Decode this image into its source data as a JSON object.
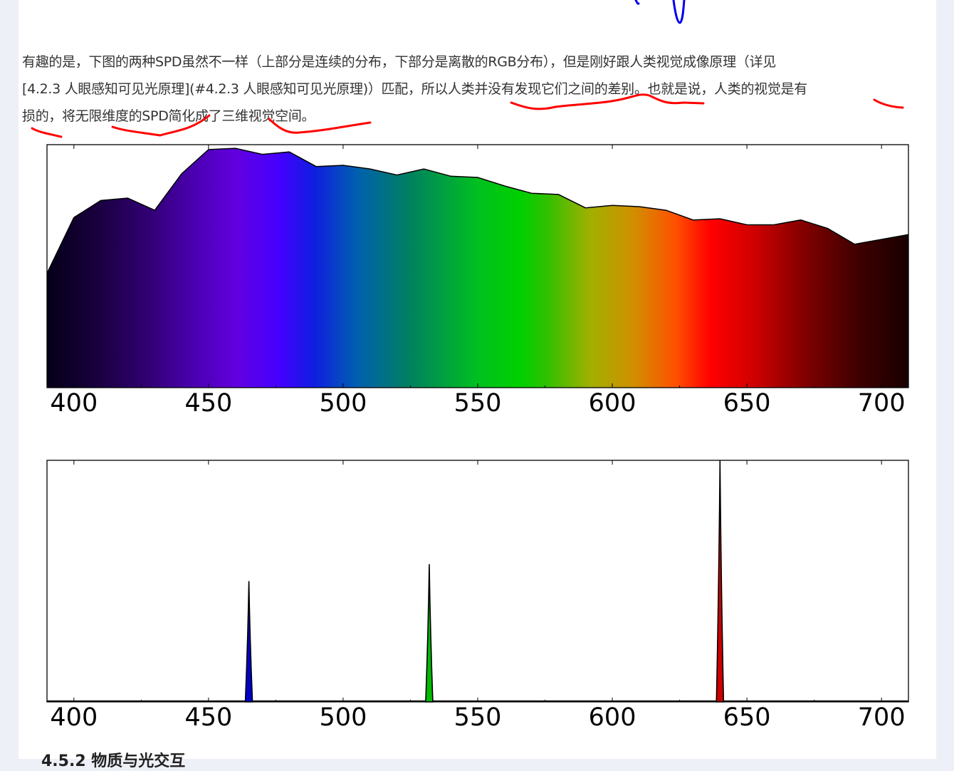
{
  "paragraph": {
    "line1": "有趣的是，下图的两种SPD虽然不一样（上部分是连续的分布，下部分是离散的RGB分布），但是刚好跟人类视觉成像原理（详见",
    "line2": "[4.2.3 人眼感知可见光原理](#4.2.3 人眼感知可见光原理)）匹配，所以人类并没有发现它们之间的差别。也就是说，人类的视觉是有",
    "line3": "损的，将无限维度的SPD简化成了三维视觉空间。"
  },
  "next_heading": "4.5.2 物质与光交互",
  "annotation_color": "#ff0000",
  "chart_data": [
    {
      "type": "area",
      "title": "",
      "xlabel": "",
      "ylabel": "",
      "xlim": [
        390,
        710
      ],
      "ylim": [
        0,
        1
      ],
      "x_ticks": [
        "400",
        "450",
        "500",
        "550",
        "600",
        "650",
        "700"
      ],
      "fill": "visible-spectrum-gradient",
      "x": [
        390,
        400,
        410,
        420,
        430,
        440,
        450,
        460,
        470,
        480,
        490,
        500,
        510,
        520,
        530,
        540,
        550,
        560,
        570,
        580,
        590,
        600,
        610,
        620,
        630,
        640,
        650,
        660,
        670,
        680,
        690,
        700,
        710
      ],
      "y": [
        0.47,
        0.7,
        0.77,
        0.78,
        0.73,
        0.88,
        0.98,
        0.985,
        0.96,
        0.97,
        0.91,
        0.915,
        0.9,
        0.875,
        0.9,
        0.87,
        0.865,
        0.83,
        0.8,
        0.795,
        0.74,
        0.75,
        0.745,
        0.73,
        0.69,
        0.695,
        0.67,
        0.67,
        0.69,
        0.655,
        0.59,
        0.61,
        0.63
      ]
    },
    {
      "type": "line",
      "title": "",
      "xlabel": "",
      "ylabel": "",
      "xlim": [
        390,
        710
      ],
      "ylim": [
        0,
        1
      ],
      "x_ticks": [
        "400",
        "450",
        "500",
        "550",
        "600",
        "650",
        "700"
      ],
      "series": [
        {
          "color": "#0000cc",
          "peak_x": 465,
          "peak_y": 0.5
        },
        {
          "color": "#00bb00",
          "peak_x": 532,
          "peak_y": 0.57
        },
        {
          "color": "#cc0000",
          "peak_x": 640,
          "peak_y": 1.0
        }
      ]
    }
  ]
}
